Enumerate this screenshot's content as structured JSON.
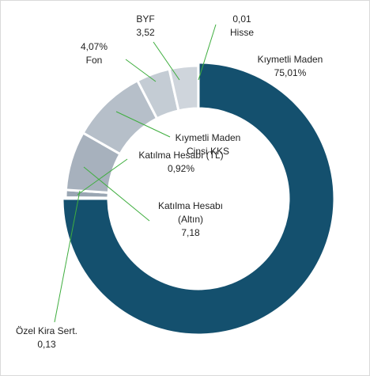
{
  "chart_data": {
    "type": "donut",
    "categories": [
      "Kıymetli Maden",
      "Özel Kira Sert.",
      "Katılma Hesabı (TL)",
      "Katılma Hesabı (Altın)",
      "Kıymetli Maden Cinsi KKS",
      "Fon",
      "BYF",
      "Hisse"
    ],
    "values": [
      75.01,
      0.13,
      0.92,
      7.18,
      9.16,
      4.07,
      3.52,
      0.01
    ],
    "value_labels": [
      "75,01%",
      "0,13",
      "0,92%",
      "7,18",
      null,
      "4,07%",
      "3,52",
      "0,01"
    ],
    "colors": [
      "#14506e",
      "#8a97a5",
      "#9aa6b3",
      "#a7b1bd",
      "#b6bfc9",
      "#c4ccd4",
      "#cfd5dc",
      "#dbe0e5"
    ]
  }
}
